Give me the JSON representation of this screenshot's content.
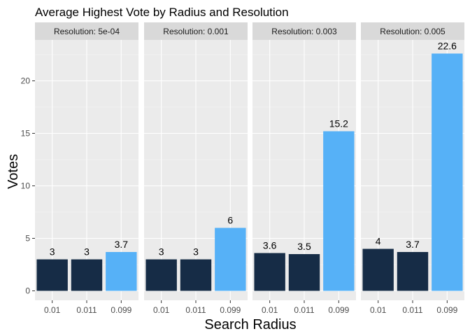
{
  "chart_data": {
    "type": "bar",
    "title": "Average Highest Vote by Radius and Resolution",
    "xlabel": "Search Radius",
    "ylabel": "Votes",
    "ylim": [
      -0.9,
      23.9
    ],
    "yticks": [
      0,
      5,
      10,
      15,
      20
    ],
    "categories": [
      "0.01",
      "0.011",
      "0.099"
    ],
    "grid": true,
    "legend": "none",
    "colors": {
      "dark": "#162c46",
      "light": "#56b1f7",
      "panel": "#ebebeb",
      "strip": "#d9d9d9",
      "grid_major": "#ffffff"
    },
    "highlight_category": "0.099",
    "facets": [
      {
        "label": "Resolution: 5e-04",
        "values": [
          3,
          3,
          3.7
        ],
        "labels": [
          "3",
          "3",
          "3.7"
        ]
      },
      {
        "label": "Resolution: 0.001",
        "values": [
          3,
          3,
          6
        ],
        "labels": [
          "3",
          "3",
          "6"
        ]
      },
      {
        "label": "Resolution: 0.003",
        "values": [
          3.6,
          3.5,
          15.2
        ],
        "labels": [
          "3.6",
          "3.5",
          "15.2"
        ]
      },
      {
        "label": "Resolution: 0.005",
        "values": [
          4,
          3.7,
          22.6
        ],
        "labels": [
          "4",
          "3.7",
          "22.6"
        ]
      }
    ]
  }
}
